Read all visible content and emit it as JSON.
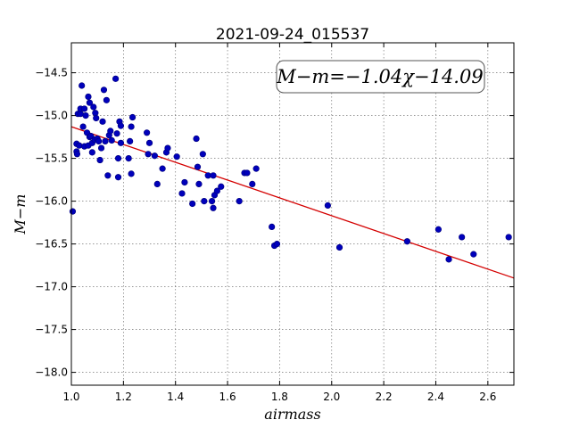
{
  "chart_data": {
    "type": "scatter",
    "title": "2021-09-24_015537",
    "xlabel": "airmass",
    "ylabel": "M−m",
    "annotation": "M−m=−1.04χ−14.09",
    "xlim": [
      1.0,
      2.7
    ],
    "ylim": [
      -18.15,
      -14.15
    ],
    "y_inverted": true,
    "grid": true,
    "xticks": [
      1.0,
      1.2,
      1.4,
      1.6,
      1.8,
      2.0,
      2.2,
      2.4,
      2.6
    ],
    "xtick_labels": [
      "1.0",
      "1.2",
      "1.4",
      "1.6",
      "1.8",
      "2.0",
      "2.2",
      "2.4",
      "2.6"
    ],
    "yticks": [
      -14.5,
      -15.0,
      -15.5,
      -16.0,
      -16.5,
      -17.0,
      -17.5,
      -18.0
    ],
    "ytick_labels": [
      "−14.5",
      "−15.0",
      "−15.5",
      "−16.0",
      "−16.5",
      "−17.0",
      "−17.5",
      "−18.0"
    ],
    "fit": {
      "slope": -1.04,
      "intercept": -14.09,
      "color": "#d40000"
    },
    "point_color": "#0000bb",
    "points": [
      [
        1.005,
        -16.12
      ],
      [
        1.02,
        -15.33
      ],
      [
        1.02,
        -15.42
      ],
      [
        1.022,
        -15.45
      ],
      [
        1.025,
        -14.98
      ],
      [
        1.03,
        -15.35
      ],
      [
        1.035,
        -14.98
      ],
      [
        1.035,
        -14.92
      ],
      [
        1.04,
        -14.65
      ],
      [
        1.045,
        -15.13
      ],
      [
        1.05,
        -15.36
      ],
      [
        1.05,
        -14.92
      ],
      [
        1.055,
        -15.0
      ],
      [
        1.06,
        -15.2
      ],
      [
        1.065,
        -15.35
      ],
      [
        1.065,
        -14.78
      ],
      [
        1.07,
        -14.85
      ],
      [
        1.07,
        -15.25
      ],
      [
        1.075,
        -15.24
      ],
      [
        1.08,
        -15.43
      ],
      [
        1.08,
        -15.32
      ],
      [
        1.085,
        -14.9
      ],
      [
        1.09,
        -15.28
      ],
      [
        1.092,
        -14.97
      ],
      [
        1.095,
        -15.03
      ],
      [
        1.1,
        -15.27
      ],
      [
        1.105,
        -15.3
      ],
      [
        1.11,
        -15.52
      ],
      [
        1.115,
        -15.38
      ],
      [
        1.12,
        -15.07
      ],
      [
        1.125,
        -14.7
      ],
      [
        1.13,
        -15.3
      ],
      [
        1.135,
        -14.82
      ],
      [
        1.14,
        -15.7
      ],
      [
        1.145,
        -15.23
      ],
      [
        1.15,
        -15.18
      ],
      [
        1.155,
        -15.29
      ],
      [
        1.17,
        -14.57
      ],
      [
        1.175,
        -15.21
      ],
      [
        1.18,
        -15.5
      ],
      [
        1.18,
        -15.72
      ],
      [
        1.185,
        -15.07
      ],
      [
        1.19,
        -15.32
      ],
      [
        1.19,
        -15.12
      ],
      [
        1.22,
        -15.5
      ],
      [
        1.225,
        -15.3
      ],
      [
        1.23,
        -15.13
      ],
      [
        1.23,
        -15.68
      ],
      [
        1.235,
        -15.02
      ],
      [
        1.29,
        -15.2
      ],
      [
        1.295,
        -15.45
      ],
      [
        1.3,
        -15.32
      ],
      [
        1.32,
        -15.47
      ],
      [
        1.33,
        -15.8
      ],
      [
        1.35,
        -15.62
      ],
      [
        1.365,
        -15.43
      ],
      [
        1.37,
        -15.38
      ],
      [
        1.405,
        -15.48
      ],
      [
        1.425,
        -15.91
      ],
      [
        1.435,
        -15.78
      ],
      [
        1.465,
        -16.03
      ],
      [
        1.48,
        -15.27
      ],
      [
        1.485,
        -15.6
      ],
      [
        1.49,
        -15.8
      ],
      [
        1.505,
        -15.45
      ],
      [
        1.51,
        -16.0
      ],
      [
        1.525,
        -15.7
      ],
      [
        1.54,
        -16.0
      ],
      [
        1.545,
        -15.7
      ],
      [
        1.545,
        -16.08
      ],
      [
        1.55,
        -15.93
      ],
      [
        1.56,
        -15.88
      ],
      [
        1.575,
        -15.83
      ],
      [
        1.645,
        -16.0
      ],
      [
        1.665,
        -15.67
      ],
      [
        1.675,
        -15.67
      ],
      [
        1.695,
        -15.8
      ],
      [
        1.71,
        -15.62
      ],
      [
        1.77,
        -16.3
      ],
      [
        1.78,
        -16.52
      ],
      [
        1.79,
        -16.5
      ],
      [
        1.985,
        -16.05
      ],
      [
        2.03,
        -16.54
      ],
      [
        2.29,
        -16.47
      ],
      [
        2.41,
        -16.33
      ],
      [
        2.45,
        -16.68
      ],
      [
        2.5,
        -16.42
      ],
      [
        2.545,
        -16.62
      ],
      [
        2.68,
        -16.42
      ]
    ]
  }
}
